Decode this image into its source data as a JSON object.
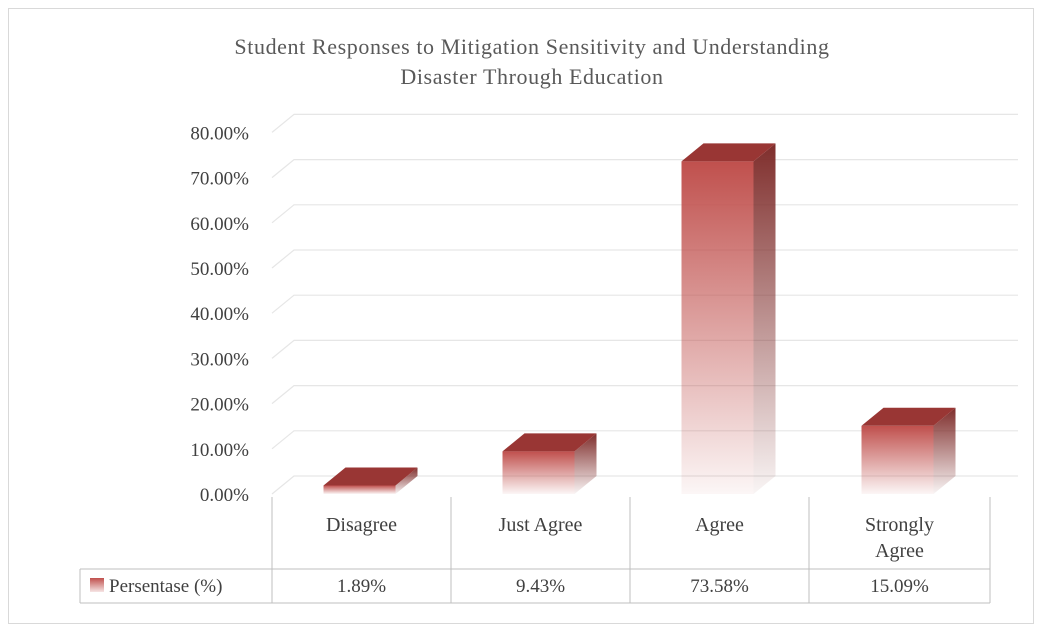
{
  "chart_data": {
    "type": "bar",
    "title": [
      "Student Responses to Mitigation Sensitivity and Understanding",
      "Disaster Through Education"
    ],
    "categories": [
      [
        "Disagree"
      ],
      [
        "Just Agree"
      ],
      [
        "Agree"
      ],
      [
        "Strongly",
        "Agree"
      ]
    ],
    "series": [
      {
        "name": "Persentase (%)",
        "values": [
          1.89,
          9.43,
          73.58,
          15.09
        ],
        "labels": [
          "1.89%",
          "9.43%",
          "73.58%",
          "15.09%"
        ]
      }
    ],
    "y_ticks": [
      "0.00%",
      "10.00%",
      "20.00%",
      "30.00%",
      "40.00%",
      "50.00%",
      "60.00%",
      "70.00%",
      "80.00%"
    ],
    "ylim": [
      0,
      80
    ],
    "grid": true,
    "legend": "data-table",
    "colors": {
      "bar_front": "#c0504d",
      "bar_side": "#7f2e2c",
      "bar_top": "#993634",
      "grid": "#e6e6e6",
      "table_border": "#bfbfbf"
    }
  }
}
